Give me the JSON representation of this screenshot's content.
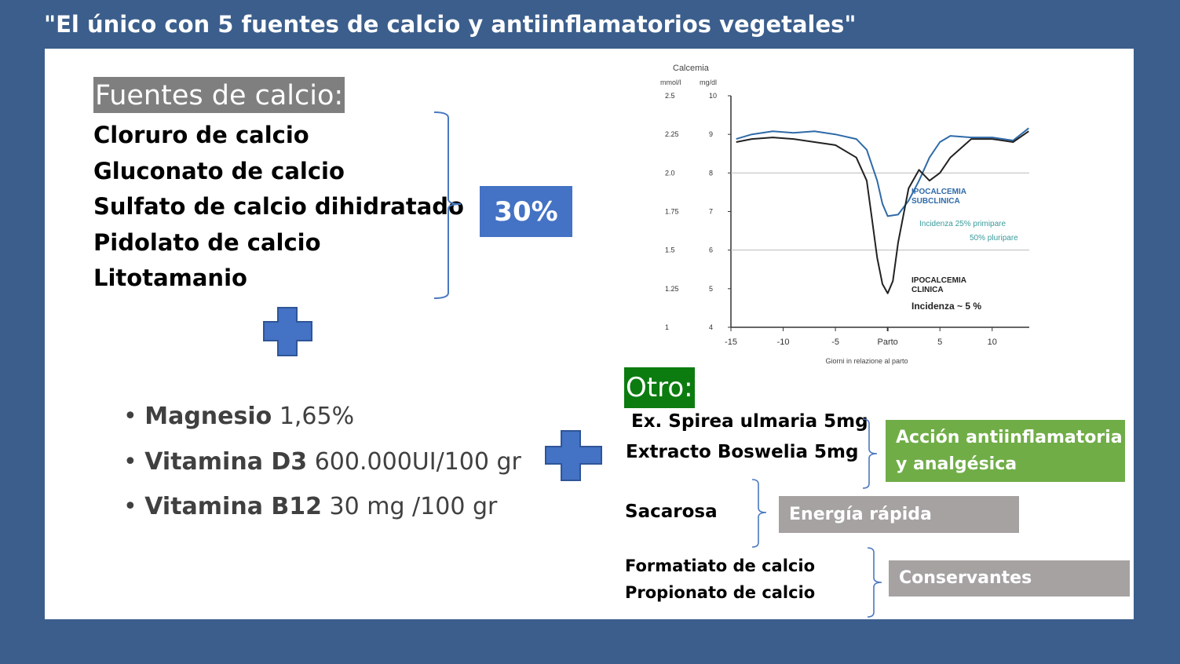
{
  "title": "\"El único con 5 fuentes de calcio y antiinflamatorios vegetales\"",
  "fuentes": {
    "header": "Fuentes de calcio:",
    "items": [
      "Cloruro de calcio",
      "Gluconato de calcio",
      "Sulfato de calcio dihidratado",
      "Pidolato de calcio",
      "Litotamanio"
    ],
    "percent": "30%"
  },
  "bullets": [
    {
      "name": "Magnesio",
      "value": "1,65%"
    },
    {
      "name": "Vitamina D3",
      "value": "600.000UI/100 gr"
    },
    {
      "name": "Vitamina B12",
      "value": "30 mg /100 gr"
    }
  ],
  "otro": {
    "header": "Otro:",
    "items": [
      "Ex. Spirea ulmaria 5mg",
      "Extracto Boswelia 5mg",
      "Sacarosa",
      "Formatiato de calcio",
      "Propionato de calcio"
    ],
    "tags": [
      "Acción antiinflamatoria y analgésica",
      "Energía rápida",
      "Conservantes"
    ]
  },
  "colors": {
    "background": "#3b5e8c",
    "blue": "#4472c4",
    "green_header": "#0c7c10",
    "green_tag": "#70ad47",
    "gray": "#a6a2a2",
    "curve_blue": "#2f6aa8",
    "curve_black": "#222222"
  },
  "chart_data": {
    "type": "line",
    "title": "Calcemia",
    "y_units": [
      "mmol/l",
      "mg/dl"
    ],
    "y_ticks_mmol": [
      "2.5",
      "2.25",
      "2.0",
      "1.75",
      "1.5",
      "1.25",
      "1"
    ],
    "y_ticks_mg": [
      "10",
      "9",
      "8",
      "7",
      "6",
      "5",
      "4"
    ],
    "x_ticks": [
      "-15",
      "-10",
      "-5",
      "Parto",
      "5",
      "10"
    ],
    "xlabel": "Giorni in relazione al parto",
    "ylim": [
      1,
      2.5
    ],
    "xlim": [
      -15,
      14
    ],
    "reference_lines": [
      2.0,
      1.5
    ],
    "series": [
      {
        "name": "IPOCALCEMIA SUBCLINICA",
        "color": "#2f6aa8",
        "x": [
          -14.5,
          -13,
          -11,
          -9,
          -7,
          -5,
          -3,
          -2,
          -1,
          -0.5,
          0,
          1,
          2,
          3,
          4,
          5,
          6,
          8,
          10,
          12,
          13.5
        ],
        "y": [
          2.22,
          2.25,
          2.27,
          2.26,
          2.27,
          2.25,
          2.22,
          2.15,
          1.95,
          1.8,
          1.72,
          1.73,
          1.82,
          1.95,
          2.1,
          2.2,
          2.24,
          2.23,
          2.23,
          2.21,
          2.29
        ]
      },
      {
        "name": "IPOCALCEMIA CLINICA",
        "color": "#222222",
        "x": [
          -14.5,
          -13,
          -11,
          -9,
          -7,
          -5,
          -3,
          -2,
          -1.5,
          -1,
          -0.5,
          0,
          0.5,
          1,
          2,
          3,
          4,
          5,
          6,
          8,
          10,
          12,
          13.5
        ],
        "y": [
          2.2,
          2.22,
          2.23,
          2.22,
          2.2,
          2.18,
          2.1,
          1.95,
          1.7,
          1.45,
          1.28,
          1.22,
          1.3,
          1.55,
          1.9,
          2.02,
          1.95,
          2.0,
          2.1,
          2.22,
          2.22,
          2.2,
          2.27
        ]
      }
    ],
    "annotations": [
      "IPOCALCEMIA SUBCLINICA",
      "Incidenza 25% primipare",
      "50% pluripare",
      "IPOCALCEMIA CLINICA",
      "Incidenza ~ 5 %"
    ]
  }
}
